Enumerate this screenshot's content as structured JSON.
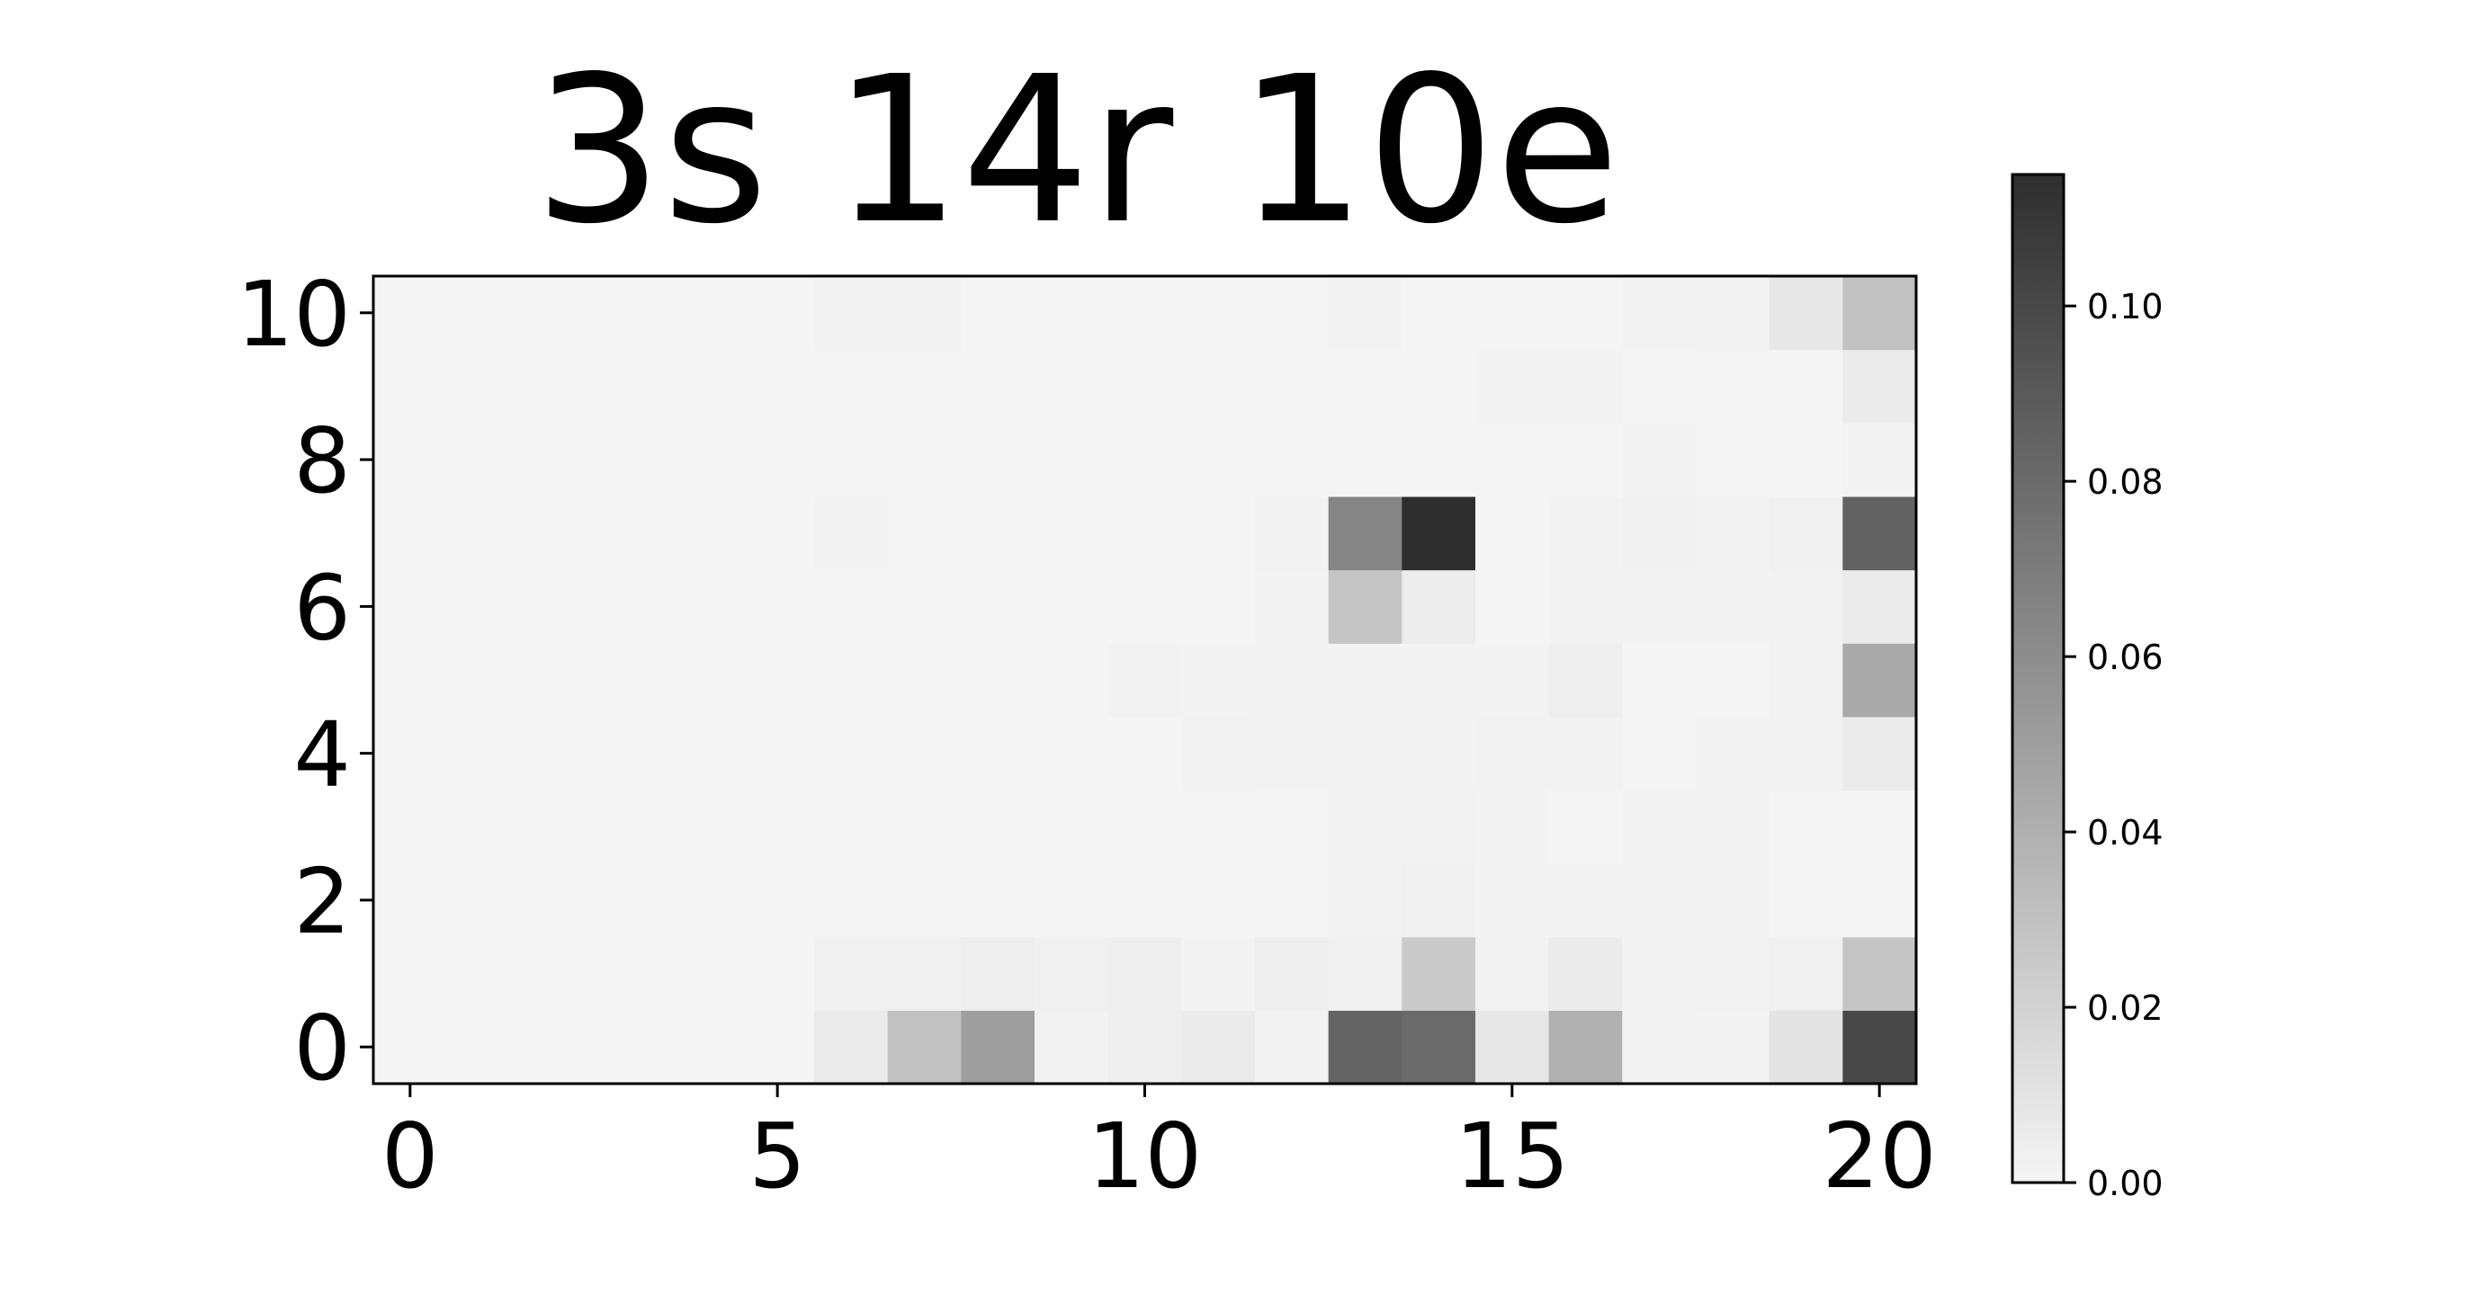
{
  "chart_data": {
    "type": "heatmap",
    "title": "3s 14r 10e",
    "xlabel": "",
    "ylabel": "",
    "x_range": [
      -0.5,
      20.5
    ],
    "y_range": [
      -0.5,
      10.5
    ],
    "x_ticks": [
      0,
      5,
      10,
      15,
      20
    ],
    "y_ticks": [
      0,
      2,
      4,
      6,
      8,
      10
    ],
    "colormap": {
      "low": "#f5f5f5",
      "high": "#2e2e2e",
      "vmin": 0,
      "vmax": 0.115
    },
    "colorbar_ticks": [
      {
        "value": 0.0,
        "label": "0.00"
      },
      {
        "value": 0.02,
        "label": "0.02"
      },
      {
        "value": 0.04,
        "label": "0.04"
      },
      {
        "value": 0.06,
        "label": "0.06"
      },
      {
        "value": 0.08,
        "label": "0.08"
      },
      {
        "value": 0.1,
        "label": "0.10"
      }
    ],
    "grid": false,
    "values": [
      [
        0,
        0,
        0,
        0,
        0,
        0,
        0.006,
        0.03,
        0.05,
        0.002,
        0.004,
        0.006,
        0.002,
        0.084,
        0.08,
        0.008,
        0.04,
        0.001,
        0.001,
        0.01,
        0.1
      ],
      [
        0,
        0,
        0,
        0,
        0,
        0,
        0.003,
        0.003,
        0.004,
        0.003,
        0.004,
        0.001,
        0.004,
        0.003,
        0.025,
        0.002,
        0.006,
        0.001,
        0.002,
        0.003,
        0.028
      ],
      [
        0,
        0,
        0,
        0,
        0,
        0,
        0,
        0,
        0,
        0,
        0,
        0,
        0,
        0.002,
        0.003,
        0.001,
        0.001,
        0.001,
        0.002,
        0,
        0
      ],
      [
        0,
        0,
        0,
        0,
        0,
        0,
        0,
        0,
        0,
        0,
        0,
        0,
        0,
        0.002,
        0.002,
        0.001,
        0,
        0.001,
        0.002,
        0,
        0
      ],
      [
        0,
        0,
        0,
        0,
        0,
        0,
        0,
        0,
        0,
        0,
        0,
        0.002,
        0.001,
        0.001,
        0.001,
        0.002,
        0.002,
        0,
        0.001,
        0.002,
        0.006
      ],
      [
        0,
        0,
        0,
        0,
        0,
        0,
        0,
        0,
        0,
        0,
        0.002,
        0.001,
        0.001,
        0.001,
        0.001,
        0.001,
        0.004,
        0,
        0,
        0.002,
        0.044
      ],
      [
        0,
        0,
        0,
        0,
        0,
        0,
        0,
        0,
        0,
        0,
        0,
        0,
        0.001,
        0.028,
        0.005,
        0,
        0.002,
        0.001,
        0.001,
        0.002,
        0.006
      ],
      [
        0,
        0,
        0,
        0,
        0,
        0,
        0.002,
        0,
        0,
        0,
        0,
        0,
        0.002,
        0.065,
        0.115,
        0,
        0.002,
        0.003,
        0.001,
        0.003,
        0.085
      ],
      [
        0,
        0,
        0,
        0,
        0,
        0,
        0,
        0,
        0,
        0,
        0,
        0,
        0,
        0,
        0,
        0,
        0,
        0.001,
        0,
        0,
        0.001
      ],
      [
        0,
        0,
        0,
        0,
        0,
        0,
        0,
        0,
        0,
        0,
        0,
        0,
        0,
        0,
        0,
        0.001,
        0.001,
        0,
        0,
        0,
        0.006
      ],
      [
        0,
        0,
        0,
        0,
        0,
        0,
        0.002,
        0.002,
        0,
        0,
        0,
        0,
        0,
        0.001,
        0,
        0,
        0,
        0.001,
        0.002,
        0.008,
        0.03
      ]
    ]
  }
}
